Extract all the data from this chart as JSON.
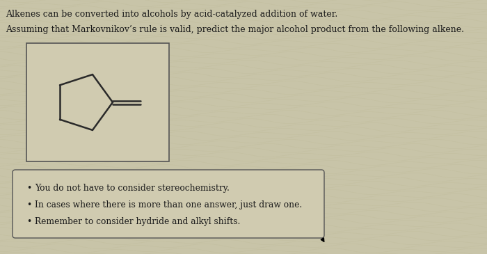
{
  "background_color": "#c8c4a8",
  "text_color": "#1a1a1a",
  "line1": "Alkenes can be converted into alcohols by acid-catalyzed addition of water.",
  "line2": "Assuming that Markovnikov’s rule is valid, predict the major alcohol product from the following alkene.",
  "bullet1": "You do not have to consider stereochemistry.",
  "bullet2": "In cases where there is more than one answer, just draw one.",
  "bullet3": "Remember to consider hydride and alkyl shifts.",
  "bullet_box_facecolor": "#d0cbb0",
  "bullet_box_edgecolor": "#555555",
  "mol_box_facecolor": "#d0cbb0",
  "mol_box_edgecolor": "#555555",
  "mol_line_color": "#2a2a2a",
  "font_size_text": 9.0,
  "font_size_bullet": 8.8
}
